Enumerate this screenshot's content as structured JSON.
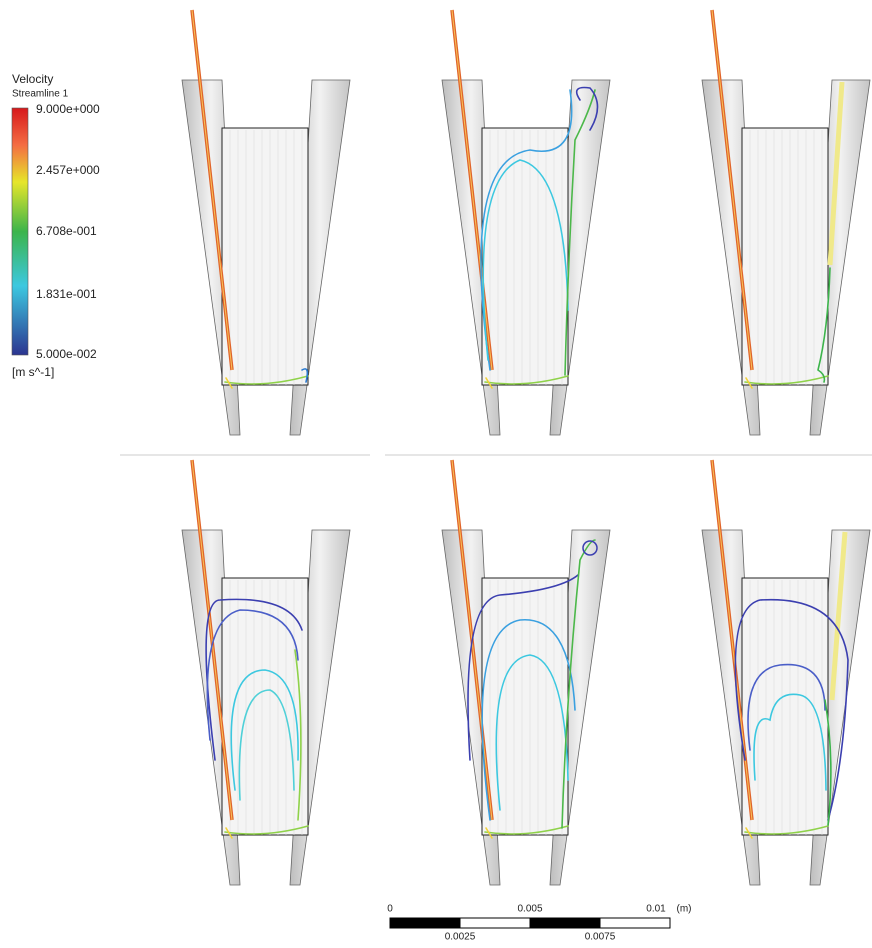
{
  "legend": {
    "title": "Velocity",
    "subtitle": "Streamline 1",
    "labels": [
      "9.000e+000",
      "2.457e+000",
      "6.708e-001",
      "1.831e-001",
      "5.000e-002"
    ],
    "unit": "[m s^-1]"
  },
  "scale_bar": {
    "top_labels": [
      "0",
      "0.005",
      "0.01"
    ],
    "unit": "(m)",
    "bottom_labels": [
      "0.0025",
      "0.0075"
    ]
  }
}
